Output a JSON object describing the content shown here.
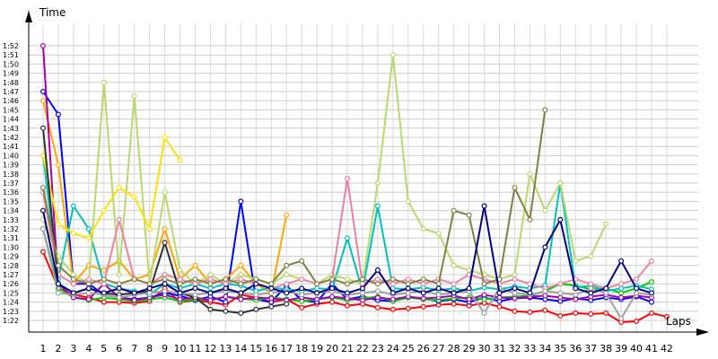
{
  "chart_data": {
    "type": "line",
    "xlabel": "Laps",
    "ylabel": "Time",
    "xlim": [
      1,
      42
    ],
    "ylim": [
      81,
      113
    ],
    "yunit": "seconds",
    "grid": true,
    "y_ticks": [
      "1:22",
      "1:23",
      "1:24",
      "1:25",
      "1:26",
      "1:27",
      "1:28",
      "1:29",
      "1:30",
      "1:31",
      "1:32",
      "1:33",
      "1:34",
      "1:35",
      "1:36",
      "1:37",
      "1:38",
      "1:39",
      "1:40",
      "1:41",
      "1:42",
      "1:43",
      "1:44",
      "1:45",
      "1:46",
      "1:47",
      "1:48",
      "1:49",
      "1:50",
      "1:51",
      "1:52"
    ],
    "x_ticks": [
      1,
      2,
      3,
      4,
      5,
      6,
      7,
      8,
      9,
      10,
      11,
      12,
      13,
      14,
      15,
      16,
      17,
      18,
      19,
      20,
      21,
      22,
      23,
      24,
      25,
      26,
      27,
      28,
      29,
      30,
      31,
      32,
      33,
      34,
      35,
      36,
      37,
      38,
      39,
      40,
      41,
      42
    ],
    "series": [
      {
        "color": "#ff0000",
        "x": [
          1,
          2,
          3,
          4,
          5,
          6,
          7,
          8,
          9,
          10,
          11,
          12,
          13,
          14,
          15,
          16,
          17,
          18,
          19,
          20,
          21,
          22,
          23,
          24,
          25,
          26,
          27,
          28,
          29,
          30,
          31,
          32,
          33,
          34,
          35,
          36,
          37,
          38,
          39,
          40,
          41,
          42
        ],
        "y": [
          89.5,
          85.5,
          84.8,
          84.5,
          84.0,
          84.0,
          83.9,
          84.1,
          85.5,
          84.0,
          84.2,
          84.0,
          83.7,
          84.8,
          84.5,
          84.0,
          84.3,
          83.4,
          83.8,
          84.0,
          83.6,
          83.8,
          83.4,
          83.2,
          83.3,
          83.5,
          83.7,
          83.8,
          83.6,
          83.9,
          83.5,
          83.0,
          82.9,
          83.1,
          82.5,
          82.8,
          82.7,
          82.8,
          81.8,
          81.9,
          82.8,
          82.4
        ]
      },
      {
        "color": "#0000ff",
        "x": [
          1,
          2,
          3,
          4,
          5,
          6,
          7,
          8,
          9,
          10,
          11,
          12,
          13,
          14,
          15,
          16,
          17,
          18,
          19,
          20,
          21,
          22,
          23,
          24,
          25,
          26,
          27,
          28,
          29,
          30,
          31,
          32,
          33,
          34,
          35,
          36,
          37,
          38,
          39,
          40,
          41
        ],
        "y": [
          107,
          104.5,
          86,
          86,
          84.8,
          84.5,
          84.3,
          84.5,
          85,
          84.7,
          84.2,
          84.6,
          84,
          95,
          84.3,
          84,
          85.8,
          84.2,
          84,
          86,
          84.3,
          84.6,
          84.2,
          84.1,
          84.5,
          84.4,
          84.1,
          84.3,
          84.0,
          84.5,
          84.1,
          84.4,
          84.5,
          84.3,
          84.1,
          84.4,
          84.2,
          84.5,
          84.3,
          84.6,
          84.0
        ]
      },
      {
        "color": "#00cc00",
        "x": [
          1,
          2,
          3,
          4,
          5,
          6,
          7,
          8,
          9,
          10,
          11,
          12,
          13,
          14,
          15,
          16,
          17,
          18,
          19,
          20,
          21,
          22,
          23,
          24,
          25,
          26,
          27,
          28,
          29,
          30,
          31,
          32,
          33,
          34,
          35,
          36,
          37,
          38,
          39,
          40,
          41
        ],
        "y": [
          92,
          85.5,
          84.5,
          84.2,
          84.5,
          84.3,
          84.1,
          84.3,
          84.5,
          84.1,
          84.3,
          84.2,
          84.6,
          84.4,
          84.2,
          84.5,
          84.3,
          84.1,
          84.3,
          84.5,
          84.2,
          84.4,
          84.6,
          84.1,
          84.5,
          84.3,
          84.2,
          84.4,
          84.5,
          84.3,
          84.5,
          84.6,
          84.7,
          85.2,
          86,
          85.8,
          85.4,
          85.5,
          85.0,
          85.5,
          86.2
        ]
      },
      {
        "color": "#ffa500",
        "x": [
          1,
          2,
          3,
          4,
          5,
          6,
          7,
          8,
          9,
          10,
          11,
          12,
          13,
          14,
          15,
          16,
          17
        ],
        "y": [
          106,
          99,
          86,
          88,
          87.5,
          88.5,
          86.5,
          87,
          92,
          86.5,
          88,
          86,
          86.5,
          88,
          86,
          85,
          93.5
        ]
      },
      {
        "color": "#aa00aa",
        "x": [
          1,
          2,
          3,
          4,
          5,
          6,
          7,
          8,
          9,
          10,
          11,
          12,
          13,
          14,
          15,
          16,
          17,
          18,
          19,
          20,
          21,
          22,
          23,
          24,
          25,
          26,
          27,
          28,
          29,
          30,
          31,
          32,
          33,
          34,
          35,
          36,
          37,
          38,
          39,
          40,
          41
        ],
        "y": [
          112,
          86,
          84.5,
          84.3,
          86,
          84.5,
          84.2,
          84.5,
          84.8,
          84.3,
          84.5,
          84.2,
          84.6,
          84.3,
          84.5,
          84.4,
          84.2,
          84.5,
          84.3,
          84.6,
          84.4,
          84.2,
          84.5,
          84.3,
          84.6,
          84.4,
          84.5,
          84.7,
          84.3,
          84.8,
          84.5,
          84.4,
          84.6,
          84.7,
          84.5,
          84.3,
          84.6,
          84.8,
          84.5,
          84.7,
          84.5
        ]
      },
      {
        "color": "#00c0c0",
        "x": [
          1,
          2,
          3,
          4,
          5,
          6,
          7,
          8,
          9,
          10,
          11,
          12,
          13,
          14,
          15,
          16,
          17,
          18,
          19,
          20,
          21,
          22,
          23,
          24,
          25,
          26,
          27,
          28,
          29,
          30,
          31,
          32,
          33,
          34,
          35,
          36,
          37,
          38,
          39,
          40,
          41
        ],
        "y": [
          100,
          86.5,
          94.5,
          92,
          86,
          85.5,
          85.2,
          84.8,
          86,
          85.5,
          86,
          85.5,
          86,
          85.8,
          85.2,
          85.6,
          85.4,
          85.2,
          85.5,
          85.4,
          91,
          85.2,
          94.5,
          85.5,
          85.4,
          85.6,
          85.3,
          85.5,
          85.2,
          85.6,
          85.4,
          85.7,
          85.5,
          85.8,
          97,
          85.6,
          85.8,
          85.2,
          85.5,
          85.8,
          85.4
        ]
      },
      {
        "color": "#b8d870",
        "x": [
          1,
          2,
          3,
          4,
          5,
          6,
          7,
          8,
          9,
          10,
          11,
          12,
          13,
          14,
          15,
          16,
          17,
          18,
          19,
          20,
          21,
          22,
          23,
          24,
          25,
          26,
          27,
          28,
          29,
          30,
          31,
          32,
          33,
          34,
          35,
          36,
          37,
          38
        ],
        "y": [
          93,
          89,
          87,
          86,
          108,
          87,
          106.5,
          86,
          96,
          87.5,
          86,
          87,
          86,
          87,
          86.5,
          86,
          87,
          86.5,
          86,
          87,
          86.5,
          86,
          97,
          111,
          95,
          92,
          91.5,
          88,
          87.5,
          87,
          86.5,
          87,
          98,
          94,
          97,
          88.5,
          89,
          92.5
        ]
      },
      {
        "color": "#ffe000",
        "x": [
          1,
          2,
          3,
          4,
          5,
          6,
          7,
          8,
          9,
          10
        ],
        "y": [
          100,
          92.5,
          91.5,
          91,
          94,
          96.5,
          95.5,
          92,
          102,
          99.5
        ]
      },
      {
        "color": "#f080a0",
        "x": [
          1,
          2,
          3,
          4,
          5,
          6,
          7,
          8,
          9,
          10,
          11,
          12,
          13,
          14,
          15,
          16,
          17,
          18,
          19,
          20,
          21,
          22,
          23,
          24,
          25,
          26,
          27,
          28,
          29,
          30,
          31,
          32,
          33,
          34,
          35,
          36,
          37,
          38,
          39,
          40,
          41
        ],
        "y": [
          96,
          87,
          86,
          86.5,
          86,
          93,
          86.5,
          86,
          87,
          86.5,
          86,
          86.5,
          86,
          86.5,
          86,
          85.5,
          86,
          86.5,
          86,
          86.5,
          97.5,
          86,
          86.5,
          86,
          86.5,
          86,
          86.5,
          86,
          87,
          86.5,
          86,
          86.5,
          86,
          85.5,
          86,
          86.5,
          86,
          85.5,
          86,
          86.5,
          88.5
        ]
      },
      {
        "color": "#303030",
        "x": [
          1,
          2,
          3,
          4,
          5,
          6,
          7,
          8,
          9,
          10,
          11,
          12,
          13,
          14,
          15,
          16,
          17
        ],
        "y": [
          103,
          86,
          85,
          85.5,
          85,
          84.8,
          85,
          85.2,
          90.5,
          85,
          84.5,
          83.2,
          83.0,
          82.8,
          83.2,
          83.5,
          83.8
        ]
      },
      {
        "color": "#808040",
        "x": [
          1,
          2,
          3,
          4,
          5,
          6,
          7,
          8,
          9,
          10,
          11,
          12,
          13,
          14,
          15,
          16,
          17,
          18,
          19,
          20,
          21,
          22,
          23,
          24,
          25,
          26,
          27,
          28,
          29,
          30,
          31,
          32,
          33,
          34
        ],
        "y": [
          96.5,
          88,
          86.5,
          86,
          86.5,
          86,
          86.5,
          86,
          86.5,
          86,
          86.5,
          86,
          86.5,
          86,
          86.5,
          86,
          88,
          88.5,
          86,
          86.5,
          86,
          86.5,
          86,
          86.5,
          86,
          86.5,
          86,
          94,
          93.5,
          86,
          86.5,
          96.5,
          93,
          105
        ]
      },
      {
        "color": "#a0a0a0",
        "x": [
          1,
          2,
          3,
          4,
          5,
          6,
          7,
          8,
          9,
          10,
          11,
          12,
          13,
          14,
          15,
          16,
          17,
          18,
          19,
          20,
          21,
          22,
          23,
          24,
          25,
          26,
          27,
          28,
          29,
          30,
          31,
          32,
          33,
          34,
          35,
          36,
          37,
          38,
          39,
          40,
          41
        ],
        "y": [
          92,
          85,
          84.8,
          85,
          84.8,
          84.5,
          84.8,
          85,
          85.2,
          85,
          84.8,
          85,
          85.2,
          85,
          84.8,
          85,
          85.2,
          84.8,
          85,
          85.2,
          84.8,
          85,
          85.2,
          84.8,
          85,
          85.2,
          84.8,
          85,
          85.2,
          82.8,
          85.5,
          85,
          84.8,
          85.2,
          85,
          84.8,
          85.5,
          85,
          82.2,
          85,
          84.8
        ]
      },
      {
        "color": "#000080",
        "x": [
          1,
          2,
          3,
          4,
          5,
          6,
          7,
          8,
          9,
          10,
          11,
          12,
          13,
          14,
          15,
          16,
          17,
          18,
          19,
          20,
          21,
          22,
          23,
          24,
          25,
          26,
          27,
          28,
          29,
          30,
          31,
          32,
          33,
          34,
          35,
          36,
          37,
          38,
          39,
          40,
          41
        ],
        "y": [
          94,
          86,
          85,
          85.5,
          85,
          85.5,
          85,
          85.5,
          86,
          85,
          85.5,
          85,
          85.5,
          85,
          86,
          85.5,
          85,
          85.5,
          85,
          85.5,
          85,
          85.5,
          87.5,
          85,
          85.5,
          85,
          85.5,
          85,
          85.5,
          94.5,
          85,
          85.5,
          85,
          90,
          93,
          85.5,
          85,
          85.5,
          88.5,
          85.5,
          85
        ]
      }
    ]
  }
}
